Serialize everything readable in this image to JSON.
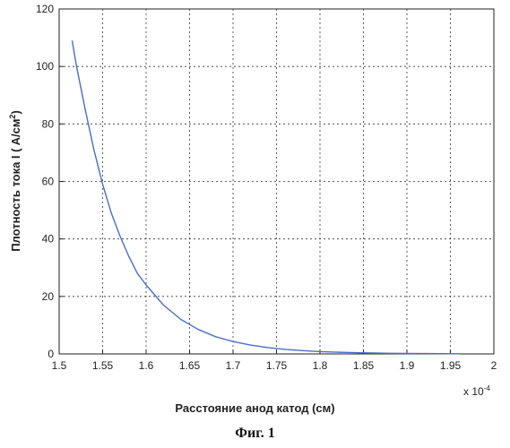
{
  "chart_data": {
    "type": "line",
    "xlabel": "Расстояние анод катод (см)",
    "ylabel_main": "Плотность тока I ( A/см",
    "ylabel_sup": "2",
    "ylabel_end": ")",
    "x_exponent_base": "x 10",
    "x_exponent_power": "-4",
    "xlim": [
      1.5,
      2.0
    ],
    "ylim": [
      0,
      120
    ],
    "grid": true,
    "xticks": [
      "1.5",
      "1.55",
      "1.6",
      "1.65",
      "1.7",
      "1.75",
      "1.8",
      "1.85",
      "1.9",
      "1.95",
      "2"
    ],
    "yticks": [
      "0",
      "20",
      "40",
      "60",
      "80",
      "100",
      "120"
    ],
    "series": [
      {
        "color": "#4a6fc4",
        "x": [
          1.515,
          1.52,
          1.53,
          1.54,
          1.55,
          1.56,
          1.57,
          1.58,
          1.59,
          1.6,
          1.62,
          1.64,
          1.66,
          1.68,
          1.7,
          1.72,
          1.74,
          1.76,
          1.78,
          1.8,
          1.82,
          1.84,
          1.86,
          1.88,
          1.9,
          1.92,
          1.94,
          1.96
        ],
        "y": [
          109,
          100,
          85,
          71,
          59,
          49,
          41,
          34,
          28,
          24,
          17,
          12,
          8.5,
          6,
          4.3,
          3.1,
          2.2,
          1.6,
          1.15,
          0.82,
          0.6,
          0.43,
          0.31,
          0.22,
          0.16,
          0.12,
          0.08,
          0.06
        ]
      }
    ]
  },
  "caption": "Фиг. 1"
}
